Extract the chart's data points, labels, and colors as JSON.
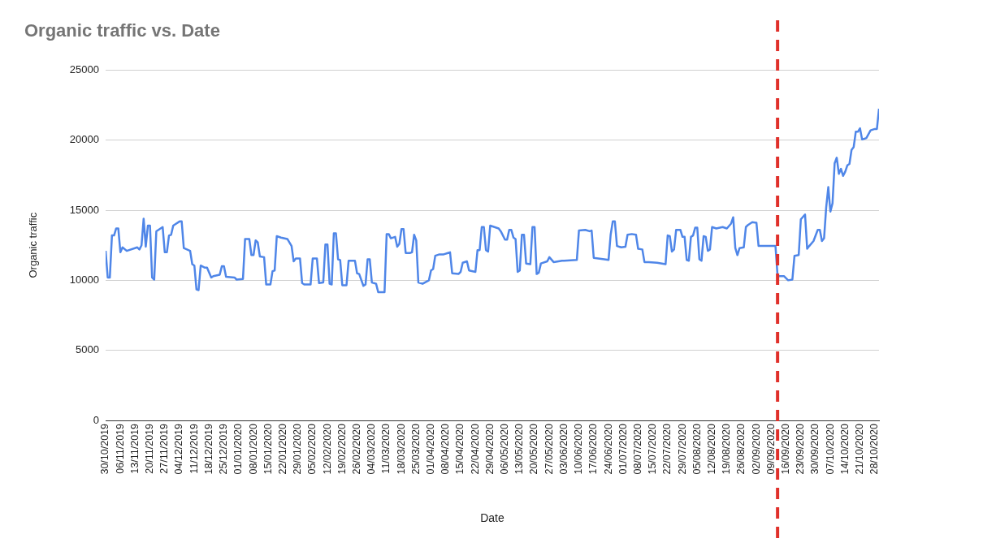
{
  "chart_data": {
    "type": "line",
    "title": "Organic traffic vs. Date",
    "xlabel": "Date",
    "ylabel": "Organic traffic",
    "color": "#4f86e8",
    "grid": "y",
    "x": [
      "2019-10-30",
      "2019-10-31",
      "2019-11-01",
      "2019-11-02",
      "2019-11-03",
      "2019-11-04",
      "2019-11-05",
      "2019-11-06",
      "2019-11-07",
      "2019-11-09",
      "2019-11-14",
      "2019-11-15",
      "2019-11-16",
      "2019-11-17",
      "2019-11-18",
      "2019-11-19",
      "2019-11-20",
      "2019-11-21",
      "2019-11-22",
      "2019-11-23",
      "2019-11-26",
      "2019-11-27",
      "2019-11-28",
      "2019-11-29",
      "2019-11-30",
      "2019-12-01",
      "2019-12-02",
      "2019-12-04",
      "2019-12-05",
      "2019-12-06",
      "2019-12-09",
      "2019-12-10",
      "2019-12-11",
      "2019-12-12",
      "2019-12-13",
      "2019-12-14",
      "2019-12-16",
      "2019-12-17",
      "2019-12-19",
      "2019-12-20",
      "2019-12-23",
      "2019-12-24",
      "2019-12-25",
      "2019-12-26",
      "2019-12-30",
      "2019-12-31",
      "2020-01-03",
      "2020-01-04",
      "2020-01-06",
      "2020-01-07",
      "2020-01-08",
      "2020-01-09",
      "2020-01-10",
      "2020-01-11",
      "2020-01-13",
      "2020-01-14",
      "2020-01-16",
      "2020-01-17",
      "2020-01-18",
      "2020-01-19",
      "2020-01-21",
      "2020-01-24",
      "2020-01-26",
      "2020-01-27",
      "2020-01-28",
      "2020-01-30",
      "2020-01-31",
      "2020-02-01",
      "2020-02-04",
      "2020-02-05",
      "2020-02-07",
      "2020-02-08",
      "2020-02-10",
      "2020-02-11",
      "2020-02-12",
      "2020-02-13",
      "2020-02-14",
      "2020-02-15",
      "2020-02-16",
      "2020-02-17",
      "2020-02-18",
      "2020-02-19",
      "2020-02-21",
      "2020-02-22",
      "2020-02-25",
      "2020-02-26",
      "2020-02-27",
      "2020-02-29",
      "2020-03-01",
      "2020-03-02",
      "2020-03-03",
      "2020-03-04",
      "2020-03-06",
      "2020-03-07",
      "2020-03-10",
      "2020-03-11",
      "2020-03-12",
      "2020-03-13",
      "2020-03-15",
      "2020-03-16",
      "2020-03-17",
      "2020-03-18",
      "2020-03-19",
      "2020-03-20",
      "2020-03-22",
      "2020-03-23",
      "2020-03-24",
      "2020-03-25",
      "2020-03-26",
      "2020-03-28",
      "2020-03-31",
      "2020-04-01",
      "2020-04-02",
      "2020-04-03",
      "2020-04-05",
      "2020-04-07",
      "2020-04-09",
      "2020-04-10",
      "2020-04-11",
      "2020-04-14",
      "2020-04-15",
      "2020-04-16",
      "2020-04-18",
      "2020-04-19",
      "2020-04-22",
      "2020-04-23",
      "2020-04-24",
      "2020-04-25",
      "2020-04-26",
      "2020-04-27",
      "2020-04-28",
      "2020-04-29",
      "2020-05-01",
      "2020-05-03",
      "2020-05-04",
      "2020-05-06",
      "2020-05-07",
      "2020-05-08",
      "2020-05-09",
      "2020-05-10",
      "2020-05-11",
      "2020-05-12",
      "2020-05-13",
      "2020-05-14",
      "2020-05-15",
      "2020-05-16",
      "2020-05-18",
      "2020-05-19",
      "2020-05-20",
      "2020-05-21",
      "2020-05-22",
      "2020-05-23",
      "2020-05-26",
      "2020-05-27",
      "2020-05-29",
      "2020-06-02",
      "2020-06-03",
      "2020-06-09",
      "2020-06-10",
      "2020-06-13",
      "2020-06-15",
      "2020-06-16",
      "2020-06-17",
      "2020-06-22",
      "2020-06-24",
      "2020-06-25",
      "2020-06-26",
      "2020-06-27",
      "2020-06-28",
      "2020-06-30",
      "2020-07-02",
      "2020-07-03",
      "2020-07-05",
      "2020-07-07",
      "2020-07-08",
      "2020-07-10",
      "2020-07-11",
      "2020-07-13",
      "2020-07-17",
      "2020-07-21",
      "2020-07-22",
      "2020-07-23",
      "2020-07-24",
      "2020-07-25",
      "2020-07-26",
      "2020-07-28",
      "2020-07-29",
      "2020-07-30",
      "2020-07-31",
      "2020-08-01",
      "2020-08-02",
      "2020-08-03",
      "2020-08-04",
      "2020-08-05",
      "2020-08-06",
      "2020-08-07",
      "2020-08-08",
      "2020-08-09",
      "2020-08-10",
      "2020-08-11",
      "2020-08-12",
      "2020-08-14",
      "2020-08-17",
      "2020-08-19",
      "2020-08-21",
      "2020-08-22",
      "2020-08-23",
      "2020-08-24",
      "2020-08-25",
      "2020-08-27",
      "2020-08-28",
      "2020-08-29",
      "2020-08-31",
      "2020-09-02",
      "2020-09-03",
      "2020-09-06",
      "2020-09-11",
      "2020-09-12",
      "2020-09-15",
      "2020-09-17",
      "2020-09-19",
      "2020-09-20",
      "2020-09-22",
      "2020-09-23",
      "2020-09-25",
      "2020-09-26",
      "2020-09-27",
      "2020-09-29",
      "2020-10-01",
      "2020-10-02",
      "2020-10-03",
      "2020-10-04",
      "2020-10-05",
      "2020-10-06",
      "2020-10-07",
      "2020-10-08",
      "2020-10-09",
      "2020-10-10",
      "2020-10-11",
      "2020-10-12",
      "2020-10-13",
      "2020-10-14",
      "2020-10-15",
      "2020-10-16",
      "2020-10-17",
      "2020-10-18",
      "2020-10-19",
      "2020-10-20",
      "2020-10-21",
      "2020-10-22",
      "2020-10-24",
      "2020-10-26",
      "2020-10-28",
      "2020-10-29",
      "2020-10-30"
    ],
    "values": [
      12100,
      10200,
      10200,
      13200,
      13200,
      13700,
      13700,
      12000,
      12350,
      12100,
      12350,
      12200,
      12500,
      14400,
      12400,
      13900,
      13900,
      10200,
      10050,
      13500,
      13800,
      12000,
      12000,
      13200,
      13250,
      13900,
      14000,
      14200,
      14200,
      12300,
      12100,
      11150,
      11050,
      9350,
      9300,
      11050,
      10900,
      10900,
      10200,
      10300,
      10400,
      11000,
      11000,
      10250,
      10200,
      10050,
      10100,
      12950,
      12950,
      11800,
      11800,
      12850,
      12700,
      11700,
      11650,
      9700,
      9700,
      10650,
      10700,
      13150,
      13050,
      12950,
      12450,
      11350,
      11550,
      11550,
      9800,
      9700,
      9700,
      11550,
      11550,
      9800,
      9850,
      12550,
      12550,
      9750,
      9700,
      13350,
      13350,
      11500,
      11450,
      9650,
      9650,
      11400,
      11400,
      10500,
      10450,
      9600,
      9700,
      11500,
      11500,
      9850,
      9750,
      9150,
      9150,
      13300,
      13300,
      13000,
      13100,
      12400,
      12600,
      13650,
      13650,
      11950,
      11950,
      12000,
      13250,
      12850,
      9850,
      9750,
      10000,
      10700,
      10800,
      11750,
      11850,
      11850,
      11950,
      12000,
      10500,
      10450,
      10600,
      11250,
      11350,
      10700,
      10600,
      12150,
      12150,
      13800,
      13800,
      12150,
      12050,
      13900,
      13800,
      13700,
      13500,
      12900,
      12900,
      13600,
      13600,
      13050,
      12950,
      10600,
      10700,
      13250,
      13250,
      11200,
      11150,
      13800,
      13800,
      10450,
      10550,
      11200,
      11350,
      11650,
      11300,
      11400,
      11400,
      11450,
      13550,
      13600,
      13500,
      13550,
      11600,
      11500,
      11450,
      13250,
      14200,
      14200,
      12450,
      12350,
      12400,
      13250,
      13300,
      13250,
      12250,
      12200,
      11300,
      11300,
      11250,
      11150,
      13200,
      13150,
      12050,
      12200,
      13600,
      13600,
      13100,
      13100,
      11450,
      11400,
      13100,
      13200,
      13750,
      13750,
      11500,
      11400,
      13150,
      13100,
      12100,
      12200,
      13800,
      13700,
      13800,
      13700,
      14050,
      14500,
      12300,
      11800,
      12300,
      12350,
      13800,
      13950,
      14150,
      14100,
      12450,
      12450,
      12450,
      10300,
      10300,
      10000,
      10050,
      11750,
      11800,
      14350,
      14700,
      12250,
      12450,
      12800,
      13600,
      13600,
      12800,
      13000,
      15200,
      16650,
      14900,
      15500,
      18350,
      18750,
      17600,
      17950,
      17450,
      17750,
      18200,
      18300,
      19300,
      19500,
      20600,
      20600,
      20850,
      20050,
      20150,
      20700,
      20800,
      20800,
      22250
    ],
    "xlim": [
      "2019-10-30",
      "2020-10-30"
    ],
    "ylim": [
      0,
      25000
    ],
    "yticks": [
      0,
      5000,
      10000,
      15000,
      20000,
      25000
    ],
    "xticks": [
      {
        "value": "2019-10-30",
        "label": "30/10/2019"
      },
      {
        "value": "2019-11-06",
        "label": "06/11/2019"
      },
      {
        "value": "2019-11-13",
        "label": "13/11/2019"
      },
      {
        "value": "2019-11-20",
        "label": "20/11/2019"
      },
      {
        "value": "2019-11-27",
        "label": "27/11/2019"
      },
      {
        "value": "2019-12-04",
        "label": "04/12/2019"
      },
      {
        "value": "2019-12-11",
        "label": "11/12/2019"
      },
      {
        "value": "2019-12-18",
        "label": "18/12/2019"
      },
      {
        "value": "2019-12-25",
        "label": "25/12/2019"
      },
      {
        "value": "2020-01-01",
        "label": "01/01/2020"
      },
      {
        "value": "2020-01-08",
        "label": "08/01/2020"
      },
      {
        "value": "2020-01-15",
        "label": "15/01/2020"
      },
      {
        "value": "2020-01-22",
        "label": "22/01/2020"
      },
      {
        "value": "2020-01-29",
        "label": "29/01/2020"
      },
      {
        "value": "2020-02-05",
        "label": "05/02/2020"
      },
      {
        "value": "2020-02-12",
        "label": "12/02/2020"
      },
      {
        "value": "2020-02-19",
        "label": "19/02/2020"
      },
      {
        "value": "2020-02-26",
        "label": "26/02/2020"
      },
      {
        "value": "2020-03-04",
        "label": "04/03/2020"
      },
      {
        "value": "2020-03-11",
        "label": "11/03/2020"
      },
      {
        "value": "2020-03-18",
        "label": "18/03/2020"
      },
      {
        "value": "2020-03-25",
        "label": "25/03/2020"
      },
      {
        "value": "2020-04-01",
        "label": "01/04/2020"
      },
      {
        "value": "2020-04-08",
        "label": "08/04/2020"
      },
      {
        "value": "2020-04-15",
        "label": "15/04/2020"
      },
      {
        "value": "2020-04-22",
        "label": "22/04/2020"
      },
      {
        "value": "2020-04-29",
        "label": "29/04/2020"
      },
      {
        "value": "2020-05-06",
        "label": "06/05/2020"
      },
      {
        "value": "2020-05-13",
        "label": "13/05/2020"
      },
      {
        "value": "2020-05-20",
        "label": "20/05/2020"
      },
      {
        "value": "2020-05-27",
        "label": "27/05/2020"
      },
      {
        "value": "2020-06-03",
        "label": "03/06/2020"
      },
      {
        "value": "2020-06-10",
        "label": "10/06/2020"
      },
      {
        "value": "2020-06-17",
        "label": "17/06/2020"
      },
      {
        "value": "2020-06-24",
        "label": "24/06/2020"
      },
      {
        "value": "2020-07-01",
        "label": "01/07/2020"
      },
      {
        "value": "2020-07-08",
        "label": "08/07/2020"
      },
      {
        "value": "2020-07-15",
        "label": "15/07/2020"
      },
      {
        "value": "2020-07-22",
        "label": "22/07/2020"
      },
      {
        "value": "2020-07-29",
        "label": "29/07/2020"
      },
      {
        "value": "2020-08-05",
        "label": "05/08/2020"
      },
      {
        "value": "2020-08-12",
        "label": "12/08/2020"
      },
      {
        "value": "2020-08-19",
        "label": "19/08/2020"
      },
      {
        "value": "2020-08-26",
        "label": "26/08/2020"
      },
      {
        "value": "2020-09-02",
        "label": "02/09/2020"
      },
      {
        "value": "2020-09-09",
        "label": "09/09/2020"
      },
      {
        "value": "2020-09-16",
        "label": "16/09/2020"
      },
      {
        "value": "2020-09-23",
        "label": "23/09/2020"
      },
      {
        "value": "2020-09-30",
        "label": "30/09/2020"
      },
      {
        "value": "2020-10-07",
        "label": "07/10/2020"
      },
      {
        "value": "2020-10-14",
        "label": "14/10/2020"
      },
      {
        "value": "2020-10-21",
        "label": "21/10/2020"
      },
      {
        "value": "2020-10-28",
        "label": "28/10/2020"
      }
    ],
    "ref_lines": [
      {
        "axis": "x",
        "value": "2020-09-12",
        "color": "#e0302a",
        "line_style": "dashed"
      }
    ]
  }
}
